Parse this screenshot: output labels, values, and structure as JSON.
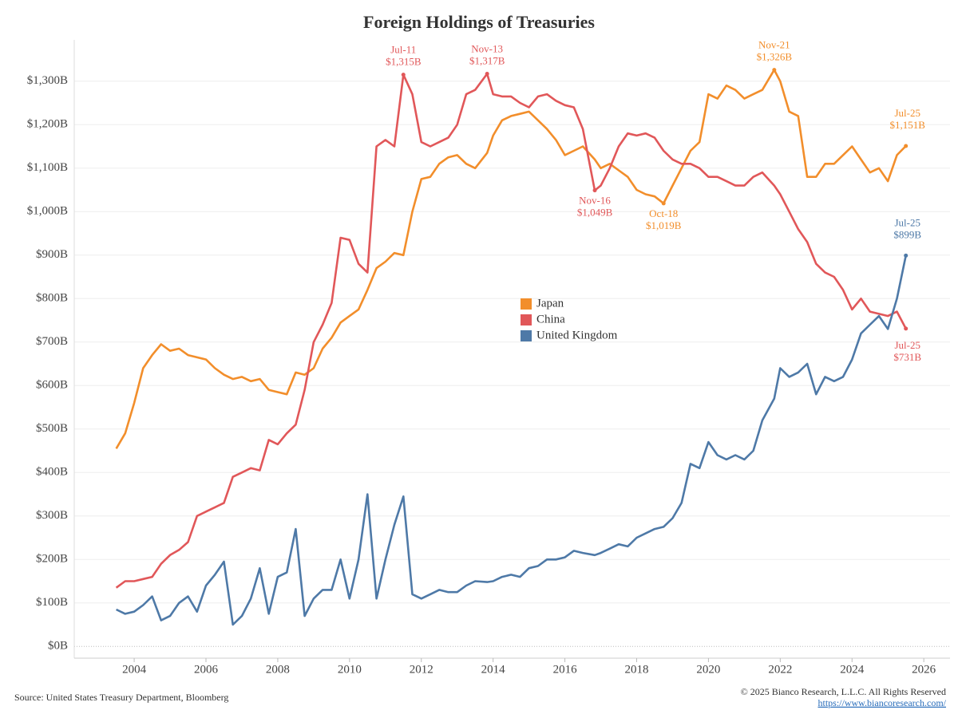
{
  "chart_data": {
    "type": "line",
    "title": "Foreign Holdings of Treasuries",
    "source": "Source: United States Treasury Department, Bloomberg",
    "copyright": "© 2025 Bianco Research, L.L.C. All Rights Reserved",
    "url": "https://www.biancoresearch.com/",
    "xlim": [
      2002.33,
      2026.73
    ],
    "xticks": [
      2004,
      2006,
      2008,
      2010,
      2012,
      2014,
      2016,
      2018,
      2020,
      2022,
      2024,
      2026
    ],
    "ylim": [
      -27,
      1395
    ],
    "yticks": [
      {
        "value": 0,
        "label": "$0B"
      },
      {
        "value": 100,
        "label": "$100B"
      },
      {
        "value": 200,
        "label": "$200B"
      },
      {
        "value": 300,
        "label": "$300B"
      },
      {
        "value": 400,
        "label": "$400B"
      },
      {
        "value": 500,
        "label": "$500B"
      },
      {
        "value": 600,
        "label": "$600B"
      },
      {
        "value": 700,
        "label": "$700B"
      },
      {
        "value": 800,
        "label": "$800B"
      },
      {
        "value": 900,
        "label": "$900B"
      },
      {
        "value": 1000,
        "label": "$1,000B"
      },
      {
        "value": 1100,
        "label": "$1,100B"
      },
      {
        "value": 1200,
        "label": "$1,200B"
      },
      {
        "value": 1300,
        "label": "$1,300B"
      }
    ],
    "grid": true,
    "x": [
      2003.5,
      2003.75,
      2004.0,
      2004.25,
      2004.5,
      2004.75,
      2005.0,
      2005.25,
      2005.5,
      2005.75,
      2006.0,
      2006.25,
      2006.5,
      2006.75,
      2007.0,
      2007.25,
      2007.5,
      2007.75,
      2008.0,
      2008.25,
      2008.5,
      2008.75,
      2009.0,
      2009.25,
      2009.5,
      2009.75,
      2010.0,
      2010.25,
      2010.5,
      2010.75,
      2011.0,
      2011.25,
      2011.5,
      2011.75,
      2012.0,
      2012.25,
      2012.5,
      2012.75,
      2013.0,
      2013.25,
      2013.5,
      2013.833,
      2014.0,
      2014.25,
      2014.5,
      2014.75,
      2015.0,
      2015.25,
      2015.5,
      2015.75,
      2016.0,
      2016.25,
      2016.5,
      2016.833,
      2017.0,
      2017.25,
      2017.5,
      2017.75,
      2018.0,
      2018.25,
      2018.5,
      2018.75,
      2019.0,
      2019.25,
      2019.5,
      2019.75,
      2020.0,
      2020.25,
      2020.5,
      2020.75,
      2021.0,
      2021.25,
      2021.5,
      2021.833,
      2022.0,
      2022.25,
      2022.5,
      2022.75,
      2023.0,
      2023.25,
      2023.5,
      2023.75,
      2024.0,
      2024.25,
      2024.5,
      2024.75,
      2025.0,
      2025.25,
      2025.5
    ],
    "series": [
      {
        "name": "Japan",
        "color": "#f28e2b",
        "values": [
          455,
          490,
          560,
          640,
          670,
          695,
          680,
          685,
          670,
          665,
          660,
          640,
          625,
          615,
          620,
          610,
          615,
          590,
          585,
          580,
          630,
          625,
          640,
          685,
          710,
          745,
          760,
          775,
          820,
          870,
          885,
          905,
          900,
          1000,
          1075,
          1080,
          1110,
          1125,
          1130,
          1110,
          1100,
          1135,
          1175,
          1210,
          1220,
          1225,
          1230,
          1210,
          1190,
          1165,
          1130,
          1140,
          1150,
          1120,
          1100,
          1110,
          1095,
          1080,
          1050,
          1040,
          1035,
          1019,
          1060,
          1100,
          1140,
          1160,
          1270,
          1260,
          1290,
          1280,
          1260,
          1270,
          1280,
          1326,
          1300,
          1230,
          1220,
          1080,
          1080,
          1110,
          1110,
          1130,
          1150,
          1120,
          1090,
          1100,
          1070,
          1130,
          1151
        ]
      },
      {
        "name": "China",
        "color": "#e15759",
        "values": [
          135,
          150,
          150,
          155,
          160,
          190,
          210,
          222,
          240,
          300,
          310,
          320,
          330,
          390,
          400,
          410,
          405,
          475,
          465,
          490,
          510,
          590,
          700,
          740,
          790,
          940,
          935,
          880,
          860,
          1150,
          1165,
          1150,
          1315,
          1270,
          1160,
          1150,
          1160,
          1170,
          1200,
          1270,
          1280,
          1317,
          1270,
          1265,
          1265,
          1250,
          1240,
          1265,
          1270,
          1255,
          1245,
          1240,
          1190,
          1049,
          1060,
          1100,
          1150,
          1180,
          1175,
          1180,
          1170,
          1140,
          1120,
          1110,
          1110,
          1100,
          1080,
          1080,
          1070,
          1060,
          1060,
          1080,
          1090,
          1060,
          1040,
          1000,
          960,
          930,
          880,
          860,
          850,
          820,
          775,
          800,
          770,
          765,
          760,
          770,
          731
        ]
      },
      {
        "name": "United Kingdom",
        "color": "#4e79a7",
        "values": [
          85,
          75,
          80,
          95,
          115,
          60,
          70,
          100,
          115,
          80,
          140,
          165,
          195,
          50,
          70,
          110,
          180,
          75,
          160,
          170,
          270,
          70,
          110,
          130,
          130,
          200,
          110,
          200,
          350,
          110,
          200,
          280,
          345,
          120,
          110,
          120,
          130,
          125,
          125,
          140,
          150,
          148,
          150,
          160,
          165,
          160,
          180,
          185,
          200,
          200,
          205,
          220,
          215,
          210,
          215,
          225,
          235,
          230,
          250,
          260,
          270,
          275,
          295,
          330,
          420,
          410,
          470,
          440,
          430,
          440,
          430,
          450,
          520,
          570,
          640,
          620,
          630,
          650,
          580,
          620,
          610,
          620,
          660,
          720,
          740,
          760,
          730,
          800,
          899
        ]
      }
    ],
    "annotations": [
      {
        "series": "China",
        "date": "Jul-11",
        "label": "$1,315B",
        "x": 2011.5,
        "y": 1315,
        "position": "above"
      },
      {
        "series": "China",
        "date": "Nov-13",
        "label": "$1,317B",
        "x": 2013.833,
        "y": 1317,
        "position": "above"
      },
      {
        "series": "China",
        "date": "Nov-16",
        "label": "$1,049B",
        "x": 2016.833,
        "y": 1049,
        "position": "below"
      },
      {
        "series": "Japan",
        "date": "Oct-18",
        "label": "$1,019B",
        "x": 2018.75,
        "y": 1019,
        "position": "below"
      },
      {
        "series": "Japan",
        "date": "Nov-21",
        "label": "$1,326B",
        "x": 2021.833,
        "y": 1326,
        "position": "above"
      },
      {
        "series": "Japan",
        "date": "Jul-25",
        "label": "$1,151B",
        "x": 2025.5,
        "y": 1151,
        "position": "above"
      },
      {
        "series": "United Kingdom",
        "date": "Jul-25",
        "label": "$899B",
        "x": 2025.5,
        "y": 899,
        "position": "above"
      },
      {
        "series": "China",
        "date": "Jul-25",
        "label": "$731B",
        "x": 2025.5,
        "y": 731,
        "position": "below"
      }
    ]
  }
}
